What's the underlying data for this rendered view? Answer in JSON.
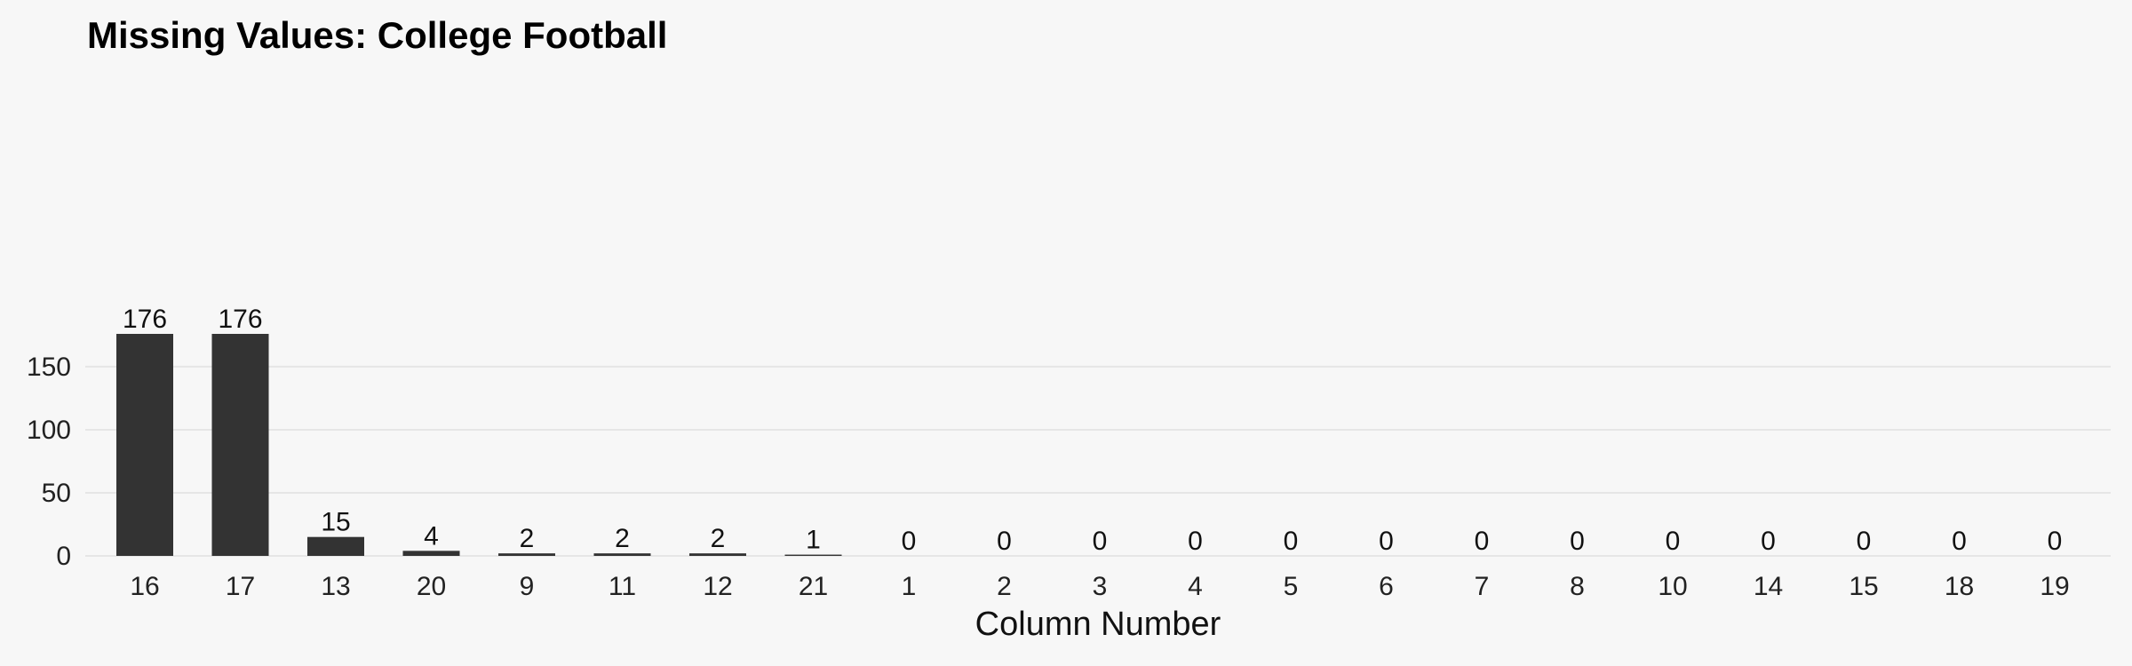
{
  "chart_data": {
    "type": "bar",
    "title": "Missing Values: College Football",
    "xlabel": "Column Number",
    "ylabel": "",
    "categories": [
      "16",
      "17",
      "13",
      "20",
      "9",
      "11",
      "12",
      "21",
      "1",
      "2",
      "3",
      "4",
      "5",
      "6",
      "7",
      "8",
      "10",
      "14",
      "15",
      "18",
      "19"
    ],
    "values": [
      176,
      176,
      15,
      4,
      2,
      2,
      2,
      1,
      0,
      0,
      0,
      0,
      0,
      0,
      0,
      0,
      0,
      0,
      0,
      0,
      0
    ],
    "ylim": [
      0,
      185
    ],
    "yticks": [
      0,
      50,
      100,
      150
    ],
    "grid": true,
    "bar_color": "#333333",
    "data_labels": true
  }
}
